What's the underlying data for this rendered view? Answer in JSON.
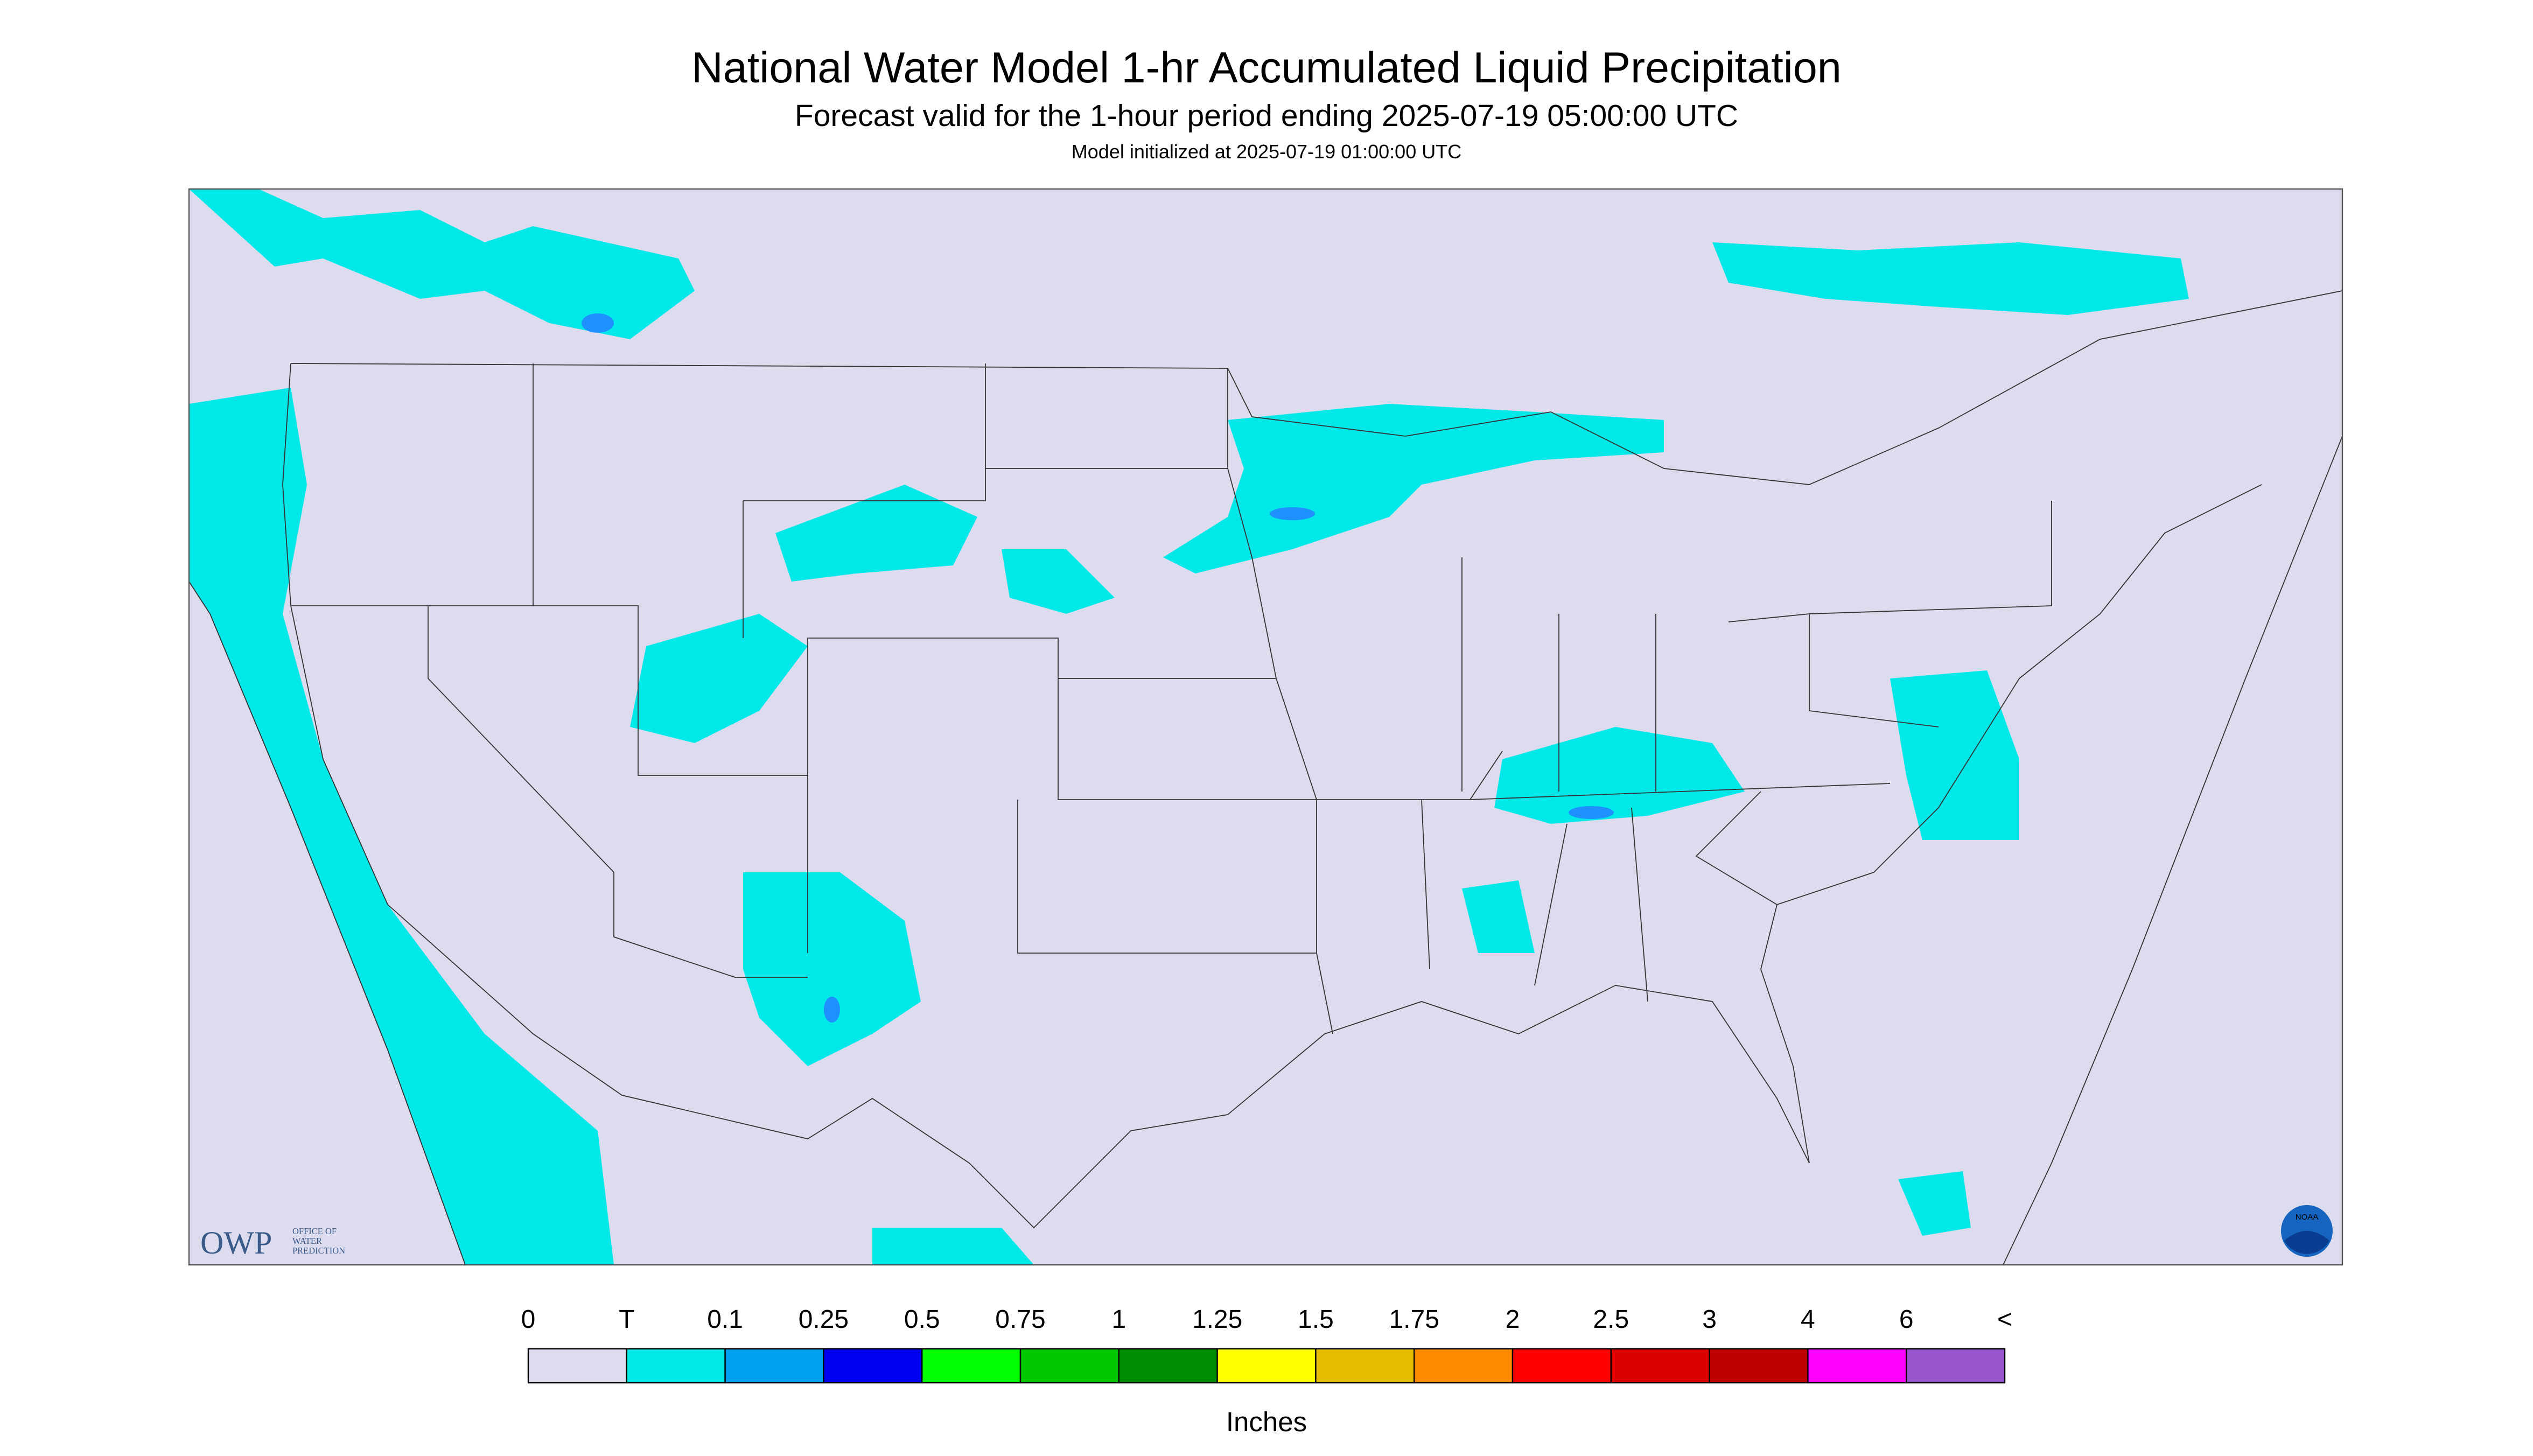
{
  "header": {
    "title": "National Water Model 1-hr Accumulated Liquid Precipitation",
    "subtitle": "Forecast valid for the 1-hour period ending 2025-07-19 05:00:00 UTC",
    "note": "Model initialized at 2025-07-19 01:00:00 UTC"
  },
  "legend": {
    "labels": [
      "0",
      "T",
      "0.1",
      "0.25",
      "0.5",
      "0.75",
      "1",
      "1.25",
      "1.5",
      "1.75",
      "2",
      "2.5",
      "3",
      "4",
      "6",
      "<"
    ],
    "colors": [
      "#dcdcee",
      "#00e8e8",
      "#00a0f0",
      "#0000f0",
      "#00ff00",
      "#00c800",
      "#008c00",
      "#ffff00",
      "#e6be00",
      "#ff8c00",
      "#ff0000",
      "#dc0000",
      "#be0000",
      "#ff00ff",
      "#9955cc"
    ],
    "units": "Inches"
  },
  "logos": {
    "owp": "OWP",
    "owp_text": [
      "OFFICE OF",
      "WATER",
      "PREDICTION"
    ],
    "noaa": "NOAA"
  }
}
